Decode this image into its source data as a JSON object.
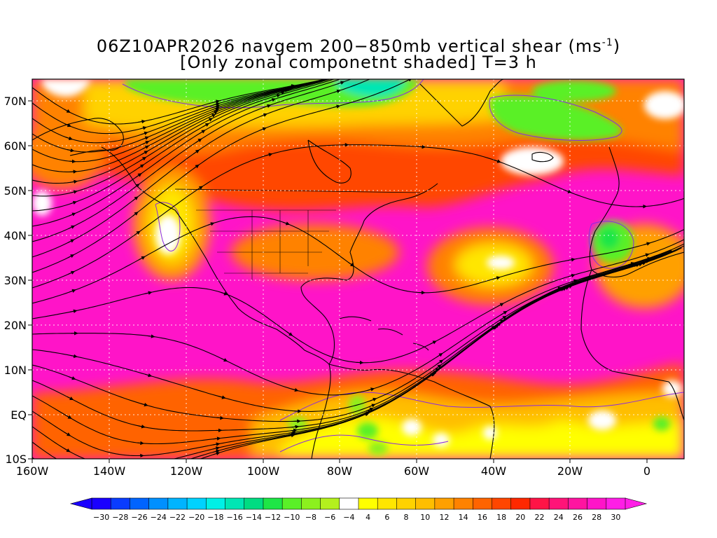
{
  "title": {
    "line1_main": "06Z10APR2026 navgem 200−850mb vertical shear (ms",
    "line1_exp": "-1",
    "line1_end": ")",
    "line2": "[Only zonal componetnt shaded] T=3 h"
  },
  "lat_labels": [
    "70N",
    "60N",
    "50N",
    "40N",
    "30N",
    "20N",
    "10N",
    "EQ",
    "10S"
  ],
  "lon_labels": [
    "160W",
    "140W",
    "120W",
    "100W",
    "80W",
    "60W",
    "40W",
    "20W",
    "0"
  ],
  "colorbar": {
    "labels": [
      "−30",
      "−28",
      "−26",
      "−24",
      "−22",
      "−20",
      "−18",
      "−16",
      "−14",
      "−12",
      "−10",
      "−8",
      "−6",
      "−4",
      "4",
      "6",
      "8",
      "10",
      "12",
      "14",
      "16",
      "18",
      "20",
      "22",
      "24",
      "26",
      "28",
      "30"
    ],
    "colors": [
      "#1a00ff",
      "#0a3cff",
      "#0064ff",
      "#0090ff",
      "#00b4ff",
      "#00d2ff",
      "#00f0e6",
      "#00e6b4",
      "#00dc82",
      "#1ee646",
      "#5af028",
      "#8cf01e",
      "#b4f01e",
      "#ffffff",
      "#ffff00",
      "#ffe600",
      "#ffd200",
      "#ffbe00",
      "#ffa000",
      "#ff8200",
      "#ff6400",
      "#ff4600",
      "#ff2800",
      "#ff1446",
      "#ff1478",
      "#ff14a0",
      "#ff14c8",
      "#ff1ee6"
    ]
  }
}
